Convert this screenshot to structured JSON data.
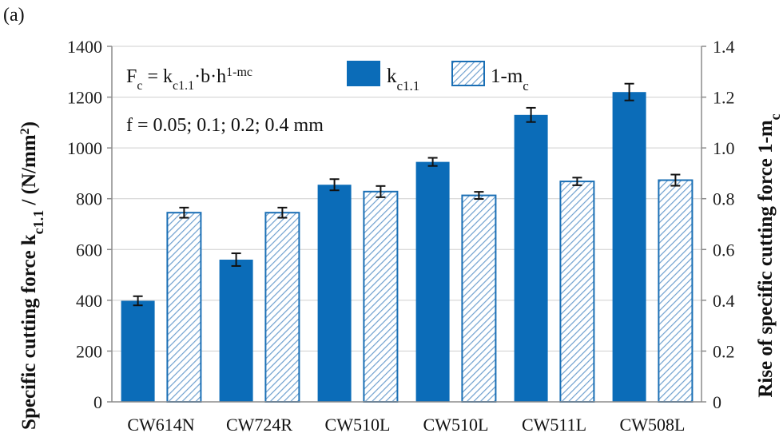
{
  "panel_label": "(a)",
  "formula": {
    "lhs": "F",
    "lhs_sub": "c",
    "eq": " = k",
    "k_sub": "c1.1",
    "mid": "·b·h",
    "exp": "1-mc"
  },
  "feed_note": "f = 0.05; 0.1; 0.2; 0.4 mm",
  "legend": {
    "kc_main": "k",
    "kc_sub": "c1.1",
    "mc_main": "1-m",
    "mc_sub": "c"
  },
  "y_left_title": {
    "main": "Specific cutting force k",
    "sub": "c1.1",
    "tail": " / (N/mm",
    "sup": "2",
    "close": ")"
  },
  "y_right_title": {
    "main": "Rise of specific cutting force 1-m",
    "sub": "c"
  },
  "colors": {
    "kc_fill": "#0b6cb8",
    "mc_stroke": "#1a6fb5",
    "mc_hatch": "#6fa0cf",
    "axis": "#8c8c8c",
    "gridline": "#cfcfcf"
  },
  "chart_data": {
    "type": "bar",
    "categories": [
      "CW614N",
      "CW724R",
      "CW510L",
      "CW510L",
      "CW511L",
      "CW508L"
    ],
    "y_left": {
      "min": 0,
      "max": 1400,
      "ticks": [
        "0",
        "200",
        "400",
        "600",
        "800",
        "1000",
        "1200",
        "1400"
      ]
    },
    "y_right": {
      "min": 0,
      "max": 1.4,
      "ticks": [
        "0",
        "0.2",
        "0.4",
        "0.6",
        "0.8",
        "1.0",
        "1.2",
        "1.4"
      ]
    },
    "series": [
      {
        "name": "kc1.1",
        "axis": "left",
        "values": [
          398,
          560,
          855,
          945,
          1130,
          1220
        ],
        "errors": [
          18,
          25,
          22,
          16,
          28,
          33
        ]
      },
      {
        "name": "1-mc",
        "axis": "right",
        "values": [
          0.745,
          0.745,
          0.828,
          0.813,
          0.868,
          0.873
        ],
        "errors": [
          0.02,
          0.02,
          0.022,
          0.014,
          0.015,
          0.022
        ]
      }
    ],
    "grid": true,
    "legend_position": "top-center"
  }
}
